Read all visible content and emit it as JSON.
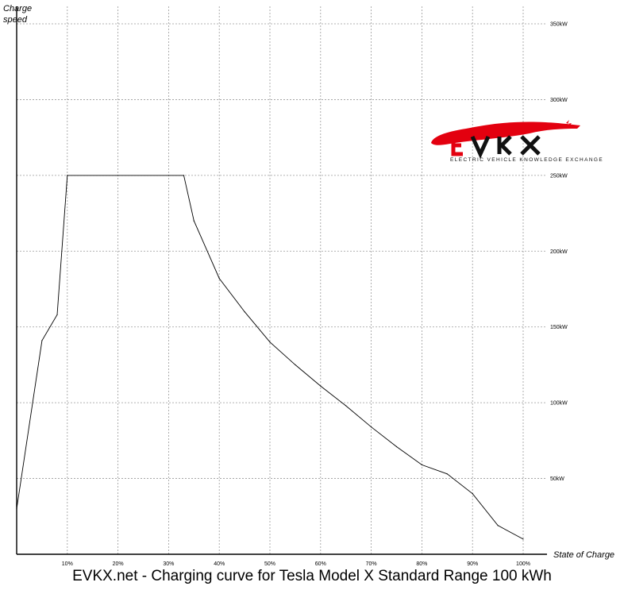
{
  "chart_data": {
    "type": "line",
    "title": "EVKX.net - Charging curve for Tesla Model X Standard Range 100 kWh",
    "xlabel": "State of Charge",
    "ylabel": "Charge\nspeed",
    "xlim": [
      0,
      100
    ],
    "ylim": [
      0,
      350
    ],
    "x_ticks": [
      "10%",
      "20%",
      "30%",
      "40%",
      "50%",
      "60%",
      "70%",
      "80%",
      "90%",
      "100%"
    ],
    "y_ticks": [
      "50kW",
      "100kW",
      "150kW",
      "200kW",
      "250kW",
      "300kW",
      "350kW"
    ],
    "grid": true,
    "series": [
      {
        "x": [
          0,
          5,
          8,
          10,
          33,
          35,
          40,
          45,
          50,
          55,
          60,
          65,
          70,
          75,
          80,
          85,
          90,
          95,
          100
        ],
        "y": [
          30,
          141,
          158,
          250,
          250,
          220,
          182,
          160,
          140,
          125,
          111,
          98,
          84,
          71,
          59,
          53,
          40,
          19,
          10
        ]
      }
    ]
  },
  "logo": {
    "text": "EVKX",
    "subtitle": "ELECTRIC VEHICLE KNOWLEDGE EXCHANGE",
    "color": "#e3000f"
  },
  "colors": {
    "line": "#000000",
    "grid": "#999999"
  }
}
